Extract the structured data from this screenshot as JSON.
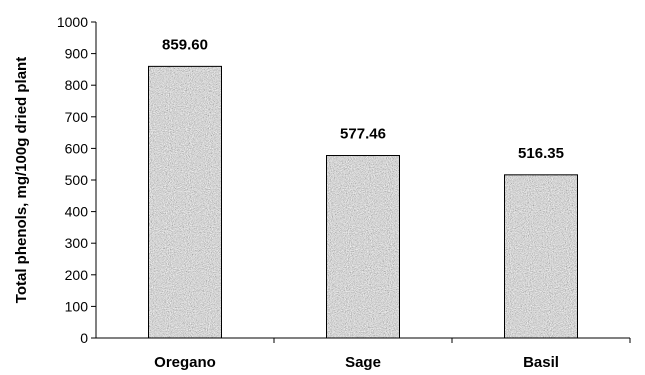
{
  "chart_data": {
    "type": "bar",
    "categories": [
      "Oregano",
      "Sage",
      "Basil"
    ],
    "values": [
      859.6,
      577.46,
      516.35
    ],
    "data_labels": [
      "859.60",
      "577.46",
      "516.35"
    ],
    "title": "",
    "xlabel": "",
    "ylabel": "Total phenols, mg/100g dried plant",
    "ylim": [
      0,
      1000
    ],
    "yticks": [
      0,
      100,
      200,
      300,
      400,
      500,
      600,
      700,
      800,
      900,
      1000
    ],
    "grid": false,
    "legend": "none",
    "bar_fill": "speckled gray",
    "colors": {
      "bar_base": "#b8b8b8",
      "bar_stroke": "#000000",
      "axis": "#000000"
    }
  }
}
